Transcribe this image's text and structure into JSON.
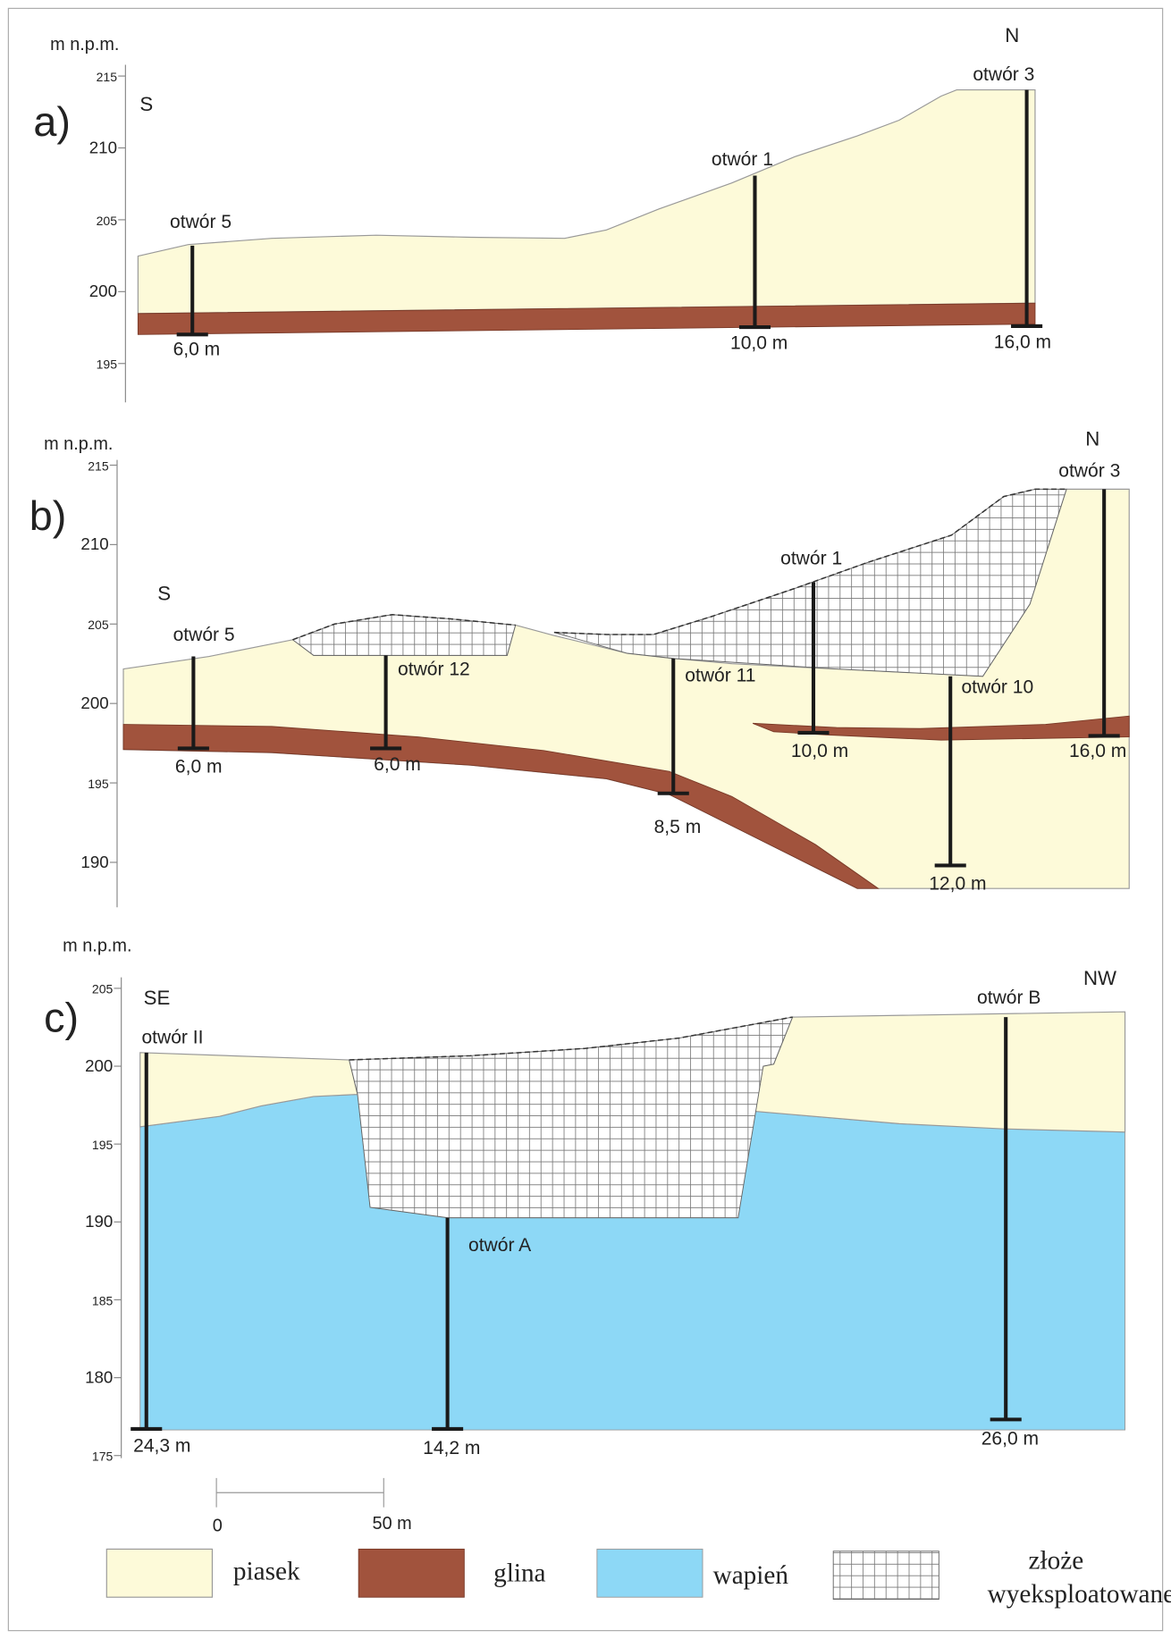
{
  "panels": [
    {
      "label": "a)",
      "unit": "m n.p.m.",
      "directions": [
        "S",
        "N"
      ],
      "ticks": [
        215,
        210,
        205,
        200,
        195
      ],
      "boreholes": [
        {
          "name": "otwór 5",
          "depth": "6,0 m"
        },
        {
          "name": "otwór 1",
          "depth": "10,0 m"
        },
        {
          "name": "otwór 3",
          "depth": "16,0 m"
        }
      ]
    },
    {
      "label": "b)",
      "unit": "m n.p.m.",
      "directions": [
        "S",
        "N"
      ],
      "ticks": [
        215,
        210,
        205,
        200,
        195,
        190
      ],
      "boreholes": [
        {
          "name": "otwór 5",
          "depth": "6,0 m"
        },
        {
          "name": "otwór 12",
          "depth": "6,0 m"
        },
        {
          "name": "otwór 11",
          "depth": "8,5 m"
        },
        {
          "name": "otwór 1",
          "depth": "10,0 m"
        },
        {
          "name": "otwór 10",
          "depth": "12,0 m"
        },
        {
          "name": "otwór 3",
          "depth": "16,0 m"
        }
      ]
    },
    {
      "label": "c)",
      "unit": "m n.p.m.",
      "directions": [
        "SE",
        "NW"
      ],
      "ticks": [
        205,
        200,
        195,
        190,
        185,
        180,
        175
      ],
      "boreholes": [
        {
          "name": "otwór II",
          "depth": "24,3 m"
        },
        {
          "name": "otwór A",
          "depth": "14,2 m"
        },
        {
          "name": "otwór B",
          "depth": "26,0 m"
        }
      ]
    }
  ],
  "scale_bar": [
    "0",
    "50 m"
  ],
  "legend": [
    [
      "piasek"
    ],
    [
      "glina"
    ],
    [
      "wapień"
    ],
    [
      "złoże",
      "wyeksploatowane"
    ]
  ]
}
